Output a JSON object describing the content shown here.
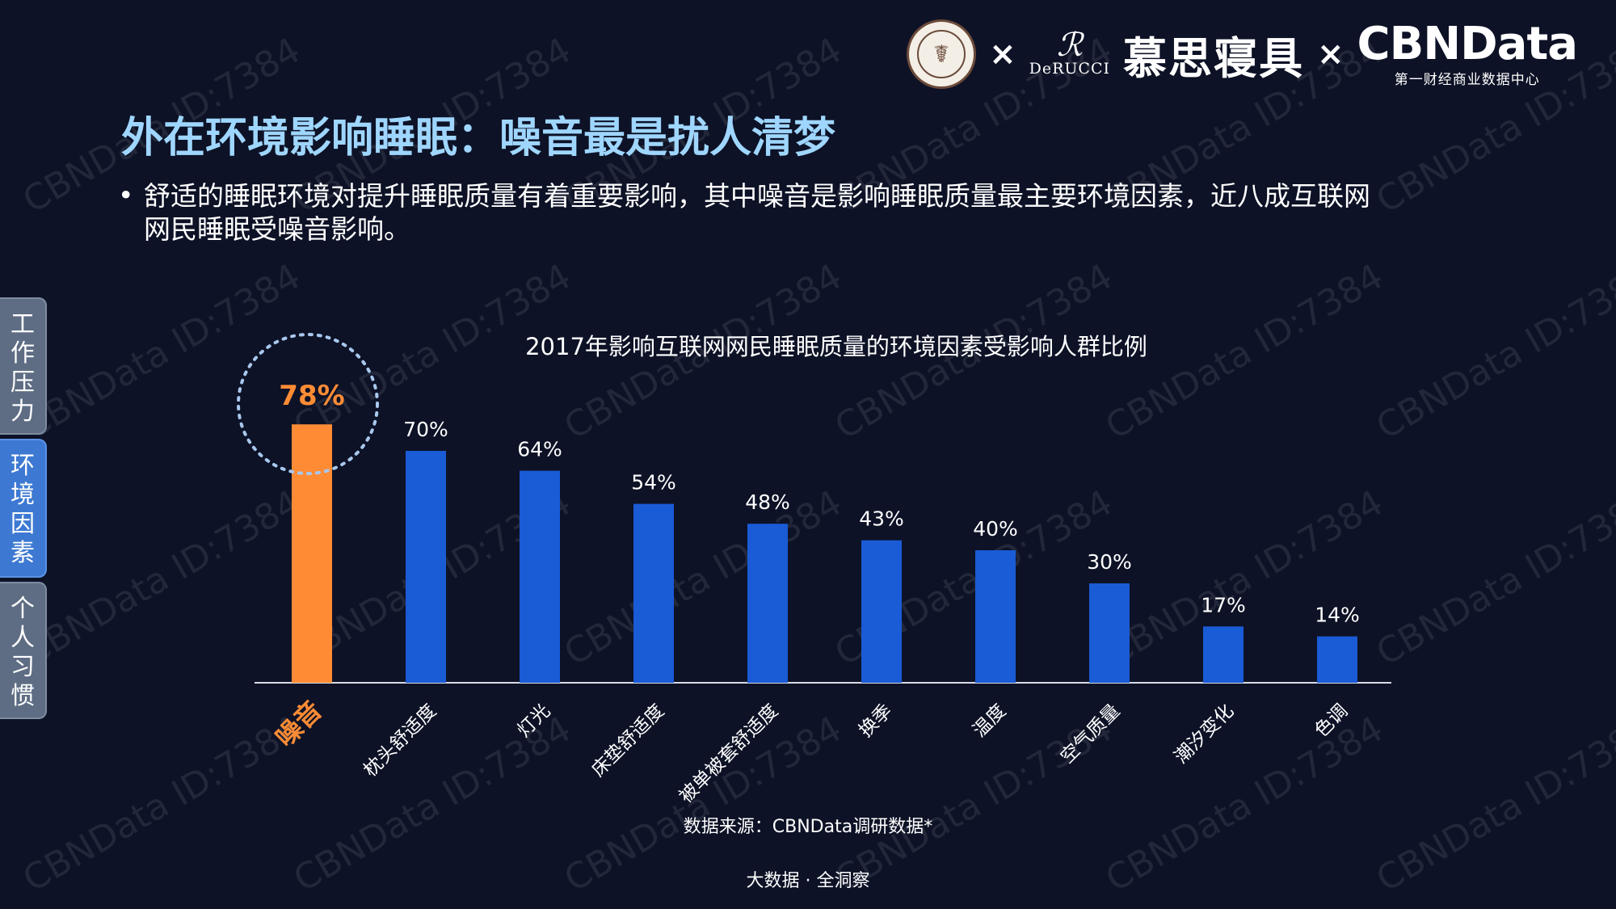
{
  "slide": {
    "title": "外在环境影响睡眠：噪音最是扰人清梦",
    "bullet_lines": [
      "舒适的睡眠环境对提升睡眠质量有着重要影响，其中噪音是影响睡眠质量最主要环境因素，近八成互联网",
      "网民睡眠受噪音影响。"
    ],
    "bullet_symbol": "•",
    "source": "数据来源：CBNData调研数据*",
    "footer": "大数据 · 全洞察",
    "watermark": "CBNData ID:7384"
  },
  "logos": {
    "times": "×",
    "derucci_mark": "ℛ",
    "derucci_word": "DeRUCCI",
    "brand_cn": "慕思寝具",
    "cbn_big": "CBNData",
    "cbn_sub": "第一财经商业数据中心"
  },
  "side_tabs": [
    {
      "label": "工作压力",
      "active": false
    },
    {
      "label": "环境因素",
      "active": true
    },
    {
      "label": "个人习惯",
      "active": false
    }
  ],
  "colors": {
    "highlight": "#ff8c35",
    "bar": "#1a5bd6",
    "title": "#9fd6ff",
    "tab_active": "#3d79d2",
    "tab": "#5e6d84"
  },
  "chart_data": {
    "type": "bar",
    "title": "2017年影响互联网网民睡眠质量的环境因素受影响人群比例",
    "categories": [
      "噪音",
      "枕头舒适度",
      "灯光",
      "床垫舒适度",
      "被单被套舒适度",
      "换季",
      "温度",
      "空气质量",
      "潮汐变化",
      "色调"
    ],
    "values": [
      78,
      70,
      64,
      54,
      48,
      43,
      40,
      30,
      17,
      14
    ],
    "value_labels": [
      "78%",
      "70%",
      "64%",
      "54%",
      "48%",
      "43%",
      "40%",
      "30%",
      "17%",
      "14%"
    ],
    "highlight_index": 0,
    "unit": "%",
    "ylim": [
      0,
      100
    ],
    "grid": false,
    "legend": "none"
  }
}
